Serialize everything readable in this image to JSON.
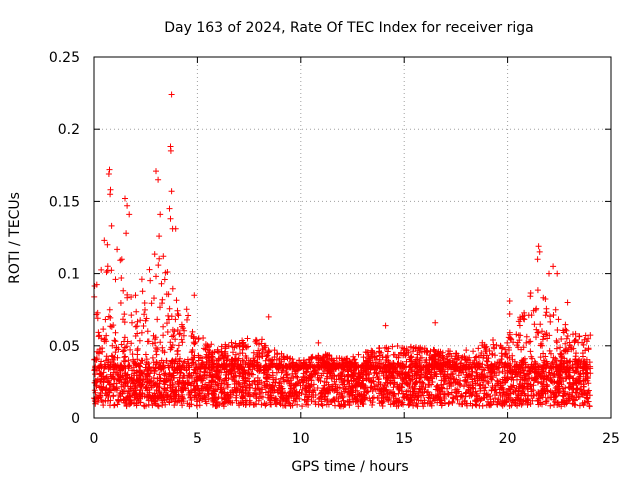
{
  "chart_data": {
    "type": "scatter",
    "title": "Day 163 of 2024, Rate Of TEC Index for receiver riga",
    "xlabel": "GPS time / hours",
    "ylabel": "ROTI / TECUs",
    "xlim": [
      0,
      25
    ],
    "ylim": [
      0,
      0.25
    ],
    "x_ticks": [
      0,
      5,
      10,
      15,
      20,
      25
    ],
    "x_tick_labels": [
      "0",
      "5",
      "10",
      "15",
      "20",
      "25"
    ],
    "y_ticks": [
      0,
      0.05,
      0.1,
      0.15,
      0.2,
      0.25
    ],
    "y_tick_labels": [
      "0",
      "0.05",
      "0.1",
      "0.15",
      "0.2",
      "0.25"
    ],
    "grid": true,
    "marker": "+",
    "series_color": "#ff0000",
    "data_extent": [
      0,
      24
    ],
    "noise_band": {
      "low": 0.008,
      "high": 0.035
    },
    "envelope_hours": [
      0,
      1,
      2,
      3,
      3.5,
      4,
      5,
      6,
      7,
      8,
      9,
      10,
      11,
      12,
      13,
      14,
      15,
      16,
      17,
      18,
      19,
      20,
      21,
      22,
      23,
      24
    ],
    "envelope_values": [
      0.095,
      0.13,
      0.09,
      0.12,
      0.11,
      0.09,
      0.06,
      0.05,
      0.058,
      0.058,
      0.045,
      0.04,
      0.045,
      0.042,
      0.045,
      0.05,
      0.05,
      0.05,
      0.048,
      0.043,
      0.055,
      0.055,
      0.095,
      0.085,
      0.06,
      0.06
    ],
    "notable_points": [
      {
        "x": 3.75,
        "y": 0.224
      },
      {
        "x": 3.7,
        "y": 0.188
      },
      {
        "x": 3.72,
        "y": 0.185
      },
      {
        "x": 0.75,
        "y": 0.172
      },
      {
        "x": 0.72,
        "y": 0.169
      },
      {
        "x": 3.0,
        "y": 0.171
      },
      {
        "x": 3.1,
        "y": 0.165
      },
      {
        "x": 0.8,
        "y": 0.158
      },
      {
        "x": 0.78,
        "y": 0.155
      },
      {
        "x": 3.75,
        "y": 0.157
      },
      {
        "x": 1.5,
        "y": 0.152
      },
      {
        "x": 1.6,
        "y": 0.147
      },
      {
        "x": 3.65,
        "y": 0.145
      },
      {
        "x": 3.2,
        "y": 0.141
      },
      {
        "x": 1.7,
        "y": 0.141
      },
      {
        "x": 3.7,
        "y": 0.138
      },
      {
        "x": 3.8,
        "y": 0.131
      },
      {
        "x": 3.95,
        "y": 0.131
      },
      {
        "x": 0.85,
        "y": 0.133
      },
      {
        "x": 1.55,
        "y": 0.128
      },
      {
        "x": 3.15,
        "y": 0.126
      },
      {
        "x": 0.5,
        "y": 0.123
      },
      {
        "x": 0.65,
        "y": 0.12
      },
      {
        "x": 21.5,
        "y": 0.119
      },
      {
        "x": 21.55,
        "y": 0.115
      },
      {
        "x": 21.45,
        "y": 0.11
      },
      {
        "x": 22.2,
        "y": 0.105
      },
      {
        "x": 22.0,
        "y": 0.1
      },
      {
        "x": 22.4,
        "y": 0.1
      },
      {
        "x": 3.35,
        "y": 0.112
      },
      {
        "x": 20.1,
        "y": 0.081
      },
      {
        "x": 20.1,
        "y": 0.072
      },
      {
        "x": 22.9,
        "y": 0.08
      },
      {
        "x": 16.5,
        "y": 0.066
      },
      {
        "x": 8.45,
        "y": 0.07
      },
      {
        "x": 4.85,
        "y": 0.085
      },
      {
        "x": 14.1,
        "y": 0.064
      },
      {
        "x": 10.85,
        "y": 0.052
      },
      {
        "x": 18.0,
        "y": 0.047
      }
    ]
  }
}
